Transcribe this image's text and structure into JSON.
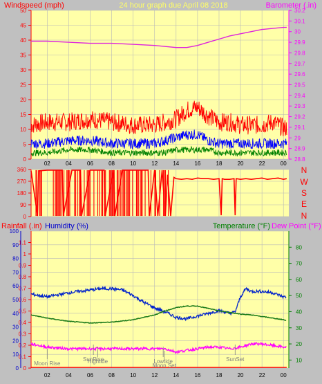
{
  "header": {
    "left_title": "Windspeed (mph)",
    "center_title": "24 hour graph due   April 08 2018",
    "right_title": "Barometer (.in)"
  },
  "lower_header": {
    "rain_label": "Rainfall (.in)",
    "humidity_label": "Humidity (%)",
    "temp_label": "Temperature (°F)",
    "dew_label": "Dew Point (°F)"
  },
  "compass_letters": [
    "N",
    "W",
    "S",
    "E",
    "N"
  ],
  "x_ticks": [
    "02",
    "04",
    "06",
    "08",
    "10",
    "12",
    "14",
    "16",
    "18",
    "20",
    "22",
    "00"
  ],
  "astro_labels": [
    {
      "text": "Moon Rise",
      "hour": 2.0,
      "row": 0
    },
    {
      "text": "SunRise",
      "hour": 6.3,
      "row": -1
    },
    {
      "text": "Hightide",
      "hour": 6.7,
      "row": -0.5
    },
    {
      "text": "Lowtide",
      "hour": 12.8,
      "row": -0.5
    },
    {
      "text": "Moon Set",
      "hour": 12.9,
      "row": 0.5
    },
    {
      "text": "SunSet",
      "hour": 19.5,
      "row": -1
    }
  ],
  "colors": {
    "plot_bg": "#ffffa8",
    "outer_bg": "#c0c0c0",
    "axis_red": "#ff0000",
    "axis_magenta": "#ff00ff",
    "axis_blue": "#0000cc",
    "axis_green": "#008000",
    "grid": "#b8b8b8",
    "wind_gust": "#ff0000",
    "wind_avg": "#0000ff",
    "wind_min": "#008000",
    "baro": "#dd22dd",
    "humidity": "#0022cc",
    "temp": "#1a7a1a",
    "dew": "#ff00ff"
  },
  "chart_data": [
    {
      "type": "line",
      "title": "24 hour graph due   April 08 2018",
      "ylabel": "Windspeed (mph)",
      "y2label": "Barometer (.in)",
      "ylim": [
        0,
        50
      ],
      "y_ticks": [
        0,
        5,
        10,
        15,
        20,
        25,
        30,
        35,
        40,
        45,
        50
      ],
      "y2lim": [
        28.8,
        30.2
      ],
      "y2_ticks": [
        "28.8",
        "28.9",
        "29",
        "29.1",
        "29.2",
        "29.3",
        "29.4",
        "29.5",
        "29.6",
        "29.7",
        "29.8",
        "29.9",
        "30",
        "30.1",
        "30.2"
      ],
      "xlim": [
        0.5,
        24.5
      ],
      "grid": true,
      "series": [
        {
          "key": "baro",
          "axis": "y2",
          "x": [
            0.5,
            2,
            4,
            6,
            8,
            10,
            12,
            13,
            14,
            15,
            16,
            17,
            18,
            19,
            20,
            21,
            22,
            23,
            24,
            24.3
          ],
          "values": [
            29.91,
            29.91,
            29.9,
            29.89,
            29.89,
            29.88,
            29.87,
            29.86,
            29.85,
            29.85,
            29.87,
            29.9,
            29.93,
            29.96,
            29.98,
            30.0,
            30.02,
            30.03,
            30.04,
            30.04
          ]
        },
        {
          "key": "gust",
          "x": [
            0.5,
            2,
            4,
            6,
            8,
            10,
            12,
            13,
            14,
            15,
            16,
            17,
            18,
            19,
            20,
            21,
            22,
            23,
            24,
            24.3
          ],
          "values": [
            11,
            12,
            12,
            13,
            12,
            11,
            11,
            12,
            13,
            16,
            17,
            14,
            12,
            12,
            11,
            11,
            11,
            12,
            10,
            10
          ]
        },
        {
          "key": "avg",
          "x": [
            0.5,
            2,
            4,
            6,
            8,
            10,
            12,
            13,
            14,
            15,
            16,
            17,
            18,
            19,
            20,
            21,
            22,
            23,
            24,
            24.3
          ],
          "values": [
            5,
            5,
            6,
            6,
            5,
            5,
            5,
            6,
            7,
            8,
            8,
            6,
            5,
            5,
            5,
            5,
            5,
            5,
            5,
            5
          ]
        },
        {
          "key": "min",
          "x": [
            0.5,
            2,
            4,
            6,
            8,
            10,
            12,
            13,
            14,
            15,
            16,
            17,
            18,
            19,
            20,
            21,
            22,
            23,
            24,
            24.3
          ],
          "values": [
            2,
            2,
            3,
            3,
            2,
            2,
            2,
            2,
            3,
            3,
            3,
            3,
            2,
            2,
            2,
            2,
            2,
            2,
            2,
            2
          ]
        }
      ]
    },
    {
      "type": "scatter",
      "ylabel": "Wind direction",
      "ylim": [
        0,
        360
      ],
      "y_ticks": [
        0,
        90,
        180,
        270,
        360
      ],
      "xlim": [
        0.5,
        24.5
      ],
      "series": [
        {
          "key": "dir",
          "x": [
            0.5,
            1.1,
            1.2,
            2.0,
            2.7,
            3.4,
            3.5,
            4.3,
            5.1,
            5.2,
            6.0,
            6.5,
            7.3,
            7.4,
            8.2,
            8.3,
            9.0,
            9.9,
            10.5,
            11.4,
            11.5,
            12.0,
            12.3,
            12.7,
            13.0,
            13.2,
            13.5,
            13.8,
            14.0,
            14.5,
            15.0,
            15.5,
            16.0,
            16.5,
            17.0,
            17.5,
            18.0,
            18.2,
            18.3,
            18.5,
            19.0,
            19.4,
            19.5,
            19.6,
            20.0,
            20.5,
            21.0,
            21.5,
            22.0,
            22.5,
            23.0,
            23.5,
            24.0,
            24.3
          ],
          "values": [
            350,
            5,
            350,
            355,
            355,
            355,
            5,
            355,
            355,
            5,
            355,
            355,
            355,
            5,
            355,
            5,
            355,
            355,
            355,
            355,
            5,
            355,
            5,
            355,
            5,
            320,
            5,
            300,
            290,
            285,
            290,
            285,
            295,
            290,
            290,
            285,
            290,
            10,
            290,
            285,
            285,
            290,
            10,
            290,
            285,
            290,
            285,
            290,
            295,
            285,
            290,
            295,
            285,
            290
          ]
        }
      ]
    },
    {
      "type": "line",
      "ylabel": "Rainfall (.in)",
      "y2label": "Humidity (%)",
      "y3label": "Temperature (°F)",
      "y4label": "Dew Point (°F)",
      "rain_lim": [
        0,
        1.2
      ],
      "rain_ticks": [
        "0",
        "0.1",
        "0.2",
        "0.3",
        "0.4",
        "0.5",
        "0.6",
        "0.7",
        "0.8",
        "0.9",
        "1",
        "1.1"
      ],
      "hum_lim": [
        0,
        100
      ],
      "hum_ticks": [
        0,
        10,
        20,
        30,
        40,
        50,
        60,
        70,
        80,
        90,
        100
      ],
      "temp_lim": [
        5,
        90
      ],
      "temp_ticks": [
        10,
        20,
        30,
        40,
        50,
        60,
        70,
        80
      ],
      "xlim": [
        0.5,
        24.5
      ],
      "grid": true,
      "series": [
        {
          "key": "humidity",
          "x": [
            0.5,
            2,
            4,
            6,
            7,
            8,
            9,
            10,
            11,
            12,
            13,
            14,
            15,
            16,
            17,
            18,
            19,
            19.5,
            20,
            20.5,
            21,
            22,
            23,
            24,
            24.3
          ],
          "values": [
            54,
            52,
            55,
            57,
            58,
            58,
            57,
            53,
            48,
            44,
            41,
            37,
            36,
            38,
            40,
            42,
            40,
            41,
            52,
            58,
            56,
            56,
            55,
            52,
            52
          ]
        },
        {
          "key": "temp",
          "x": [
            0.5,
            2,
            4,
            6,
            8,
            10,
            12,
            13,
            14,
            15,
            16,
            17,
            18,
            19,
            20,
            21,
            22,
            23,
            24,
            24.3
          ],
          "values": [
            38.0,
            36.0,
            34.0,
            33.0,
            33.5,
            35.0,
            38.0,
            40.5,
            42.5,
            43.5,
            43.5,
            42.0,
            40.5,
            39.5,
            38.5,
            38.0,
            37.0,
            36.0,
            35.0,
            34.5
          ]
        },
        {
          "key": "dew",
          "x": [
            0.5,
            2,
            4,
            6,
            8,
            10,
            12,
            13,
            14,
            15,
            16,
            17,
            18,
            19,
            20,
            21,
            22,
            23,
            24,
            24.3
          ],
          "values": [
            20,
            18,
            17,
            17,
            17,
            17,
            17,
            17,
            15,
            16,
            17,
            18,
            18,
            17,
            18,
            20,
            20,
            19,
            18,
            18
          ]
        },
        {
          "key": "rain",
          "x": [
            0.5,
            24.3
          ],
          "values": [
            0,
            0
          ]
        }
      ]
    }
  ]
}
